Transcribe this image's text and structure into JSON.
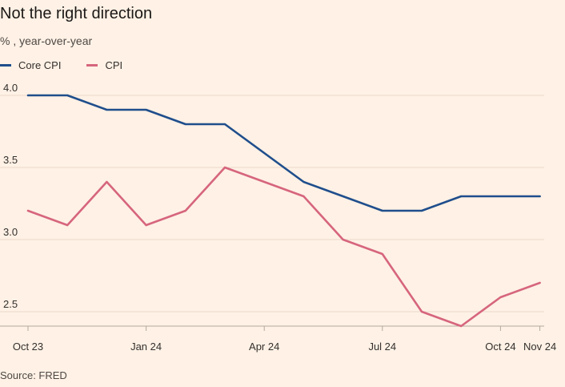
{
  "chart_data": {
    "type": "line",
    "title": "Not the right direction",
    "subtitle": "% , year-over-year",
    "source": "Source: FRED",
    "x": [
      "Oct 23",
      "Nov 23",
      "Dec 23",
      "Jan 24",
      "Feb 24",
      "Mar 24",
      "Apr 24",
      "May 24",
      "Jun 24",
      "Jul 24",
      "Aug 24",
      "Sep 24",
      "Oct 24",
      "Nov 24"
    ],
    "x_tick_labels": [
      "Oct 23",
      "Jan 24",
      "Apr 24",
      "Jul 24",
      "Oct 24",
      "Nov 24"
    ],
    "y_tick_labels": [
      "4.0",
      "3.5",
      "3.0",
      "2.5"
    ],
    "ylim": [
      2.4,
      4.0
    ],
    "grid": true,
    "legend": "top-left",
    "series": [
      {
        "name": "Core CPI",
        "color": "#1F4E8C",
        "values": [
          4.0,
          4.0,
          3.9,
          3.9,
          3.8,
          3.8,
          3.6,
          3.4,
          3.3,
          3.2,
          3.2,
          3.3,
          3.3,
          3.3
        ]
      },
      {
        "name": "CPI",
        "color": "#D6657D",
        "values": [
          3.2,
          3.1,
          3.4,
          3.1,
          3.2,
          3.5,
          3.4,
          3.3,
          3.0,
          2.9,
          2.5,
          2.4,
          2.6,
          2.7
        ]
      }
    ]
  }
}
